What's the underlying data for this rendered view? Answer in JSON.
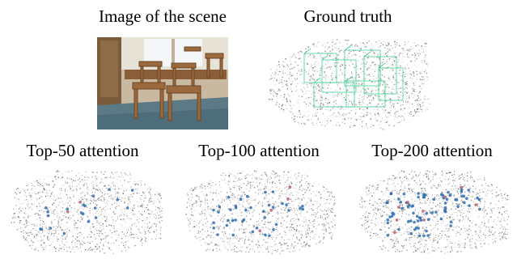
{
  "figure": {
    "labels": {
      "scene_image": "Image of the scene",
      "ground_truth": "Ground truth",
      "top50": "Top-50 attention",
      "top100": "Top-100 attention",
      "top200": "Top-200 attention"
    },
    "colors": {
      "points": "#9a9a9a",
      "gt_boxes": "#3ecf8e",
      "attention_points": "#2f6fb0",
      "attention_highlight": "#c25a6a"
    }
  }
}
